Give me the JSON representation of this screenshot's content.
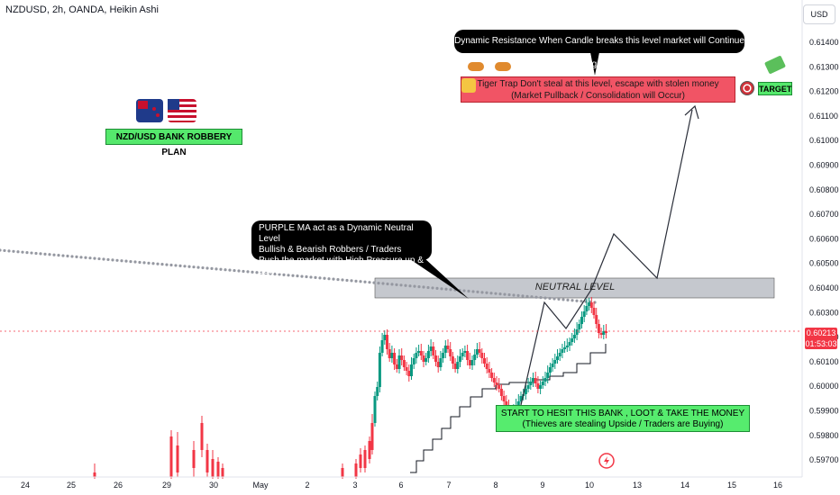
{
  "header": {
    "title": "NZDUSD, 2h, OANDA, Heikin Ashi",
    "currency": "USD"
  },
  "price_tag": {
    "price": "0.60213",
    "countdown": "01:53:03"
  },
  "annotations": {
    "dynamic_resistance": "Dynamic Resistance When Candle breaks this level market will Continue to go UP",
    "tiger_trap_line1": "Tiger Trap Don't steal at this level, escape with stolen money",
    "tiger_trap_line2": "(Market Pullback / Consolidation will Occur)",
    "target": "TARGET",
    "plan": "NZD/USD BANK ROBBERY PLAN",
    "purple_ma_line1": "PURPLE MA act as a Dynamic Neutral Level",
    "purple_ma_line2": "Bullish & Bearish Robbers / Traders",
    "purple_ma_line3": "Push the market with High Pressure up & down",
    "neutral_level": "NEUTRAL LEVEL",
    "start_line1": "START TO HESIT THIS BANK , LOOT & TAKE THE MONEY",
    "start_line2": "(Thieves are stealing Upside / Traders are Buying)"
  },
  "colors": {
    "bull": "#089981",
    "bear": "#f23645",
    "ma_dots": "#9598a1",
    "neutral_zone": "#b2b5be",
    "zone_red": "#f15465",
    "zone_green": "#56ec6e"
  },
  "chart_data": {
    "type": "candlestick",
    "title": "NZDUSD, 2h, OANDA, Heikin Ashi",
    "y_ticks": [
      "0.61400",
      "0.61300",
      "0.61200",
      "0.61100",
      "0.61000",
      "0.60900",
      "0.60800",
      "0.60700",
      "0.60600",
      "0.60500",
      "0.60400",
      "0.60300",
      "0.60200",
      "0.60100",
      "0.60000",
      "0.59900",
      "0.59800",
      "0.59700"
    ],
    "x_ticks": [
      "24",
      "25",
      "26",
      "29",
      "30",
      "May",
      "2",
      "3",
      "6",
      "7",
      "8",
      "9",
      "10",
      "13",
      "14",
      "15",
      "16"
    ],
    "ylim": [
      0.5966,
      0.6158
    ],
    "last_price": 0.60213,
    "neutral_zone": [
      0.60346,
      0.60425
    ],
    "target_zone": [
      0.6116,
      0.6126
    ],
    "entry_zone": [
      0.5982,
      0.5992
    ],
    "projection": [
      {
        "date": "May 8.6",
        "price": 0.5993
      },
      {
        "date": "May 9.0",
        "price": 0.6033
      },
      {
        "date": "May 9.7",
        "price": 0.6019
      },
      {
        "date": "May 10.5",
        "price": 0.604
      },
      {
        "date": "May 11.5",
        "price": 0.6063
      },
      {
        "date": "May 13.4",
        "price": 0.6045
      },
      {
        "date": "May 14.3",
        "price": 0.6115
      }
    ],
    "moving_average_start": 0.6056,
    "moving_average_end": 0.60345
  }
}
